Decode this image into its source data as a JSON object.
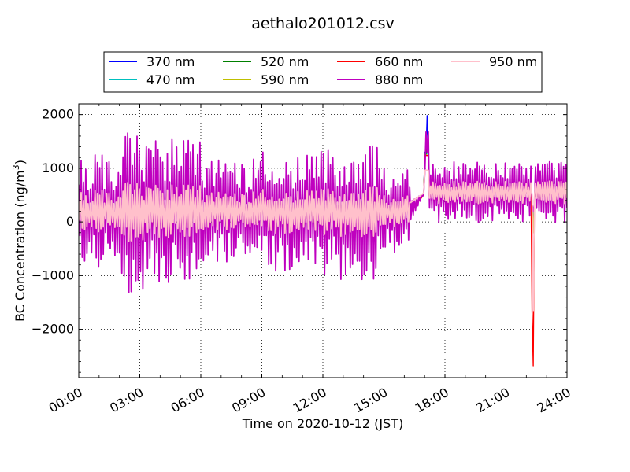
{
  "chart_data": {
    "type": "line",
    "title": "aethalo201012.csv",
    "xlabel": "Time on 2020-10-12 (JST)",
    "ylabel_main": "BC Concentration (ng/m",
    "ylabel_sup": "3",
    "ylabel_tail": ")",
    "xlim": [
      0,
      24
    ],
    "ylim": [
      -2900,
      2200
    ],
    "x_ticks": [
      0,
      3,
      6,
      9,
      12,
      15,
      18,
      21,
      24
    ],
    "x_tick_labels": [
      "00:00",
      "03:00",
      "06:00",
      "09:00",
      "12:00",
      "15:00",
      "18:00",
      "21:00",
      "24:00"
    ],
    "y_ticks": [
      -2000,
      -1000,
      0,
      1000,
      2000
    ],
    "y_tick_labels": [
      "−2000",
      "−1000",
      "0",
      "1000",
      "2000"
    ],
    "grid": true,
    "legend": "top, above plot, 4 columns",
    "series": [
      {
        "name": "370 nm",
        "color": "#0000ff"
      },
      {
        "name": "470 nm",
        "color": "#00bfbf"
      },
      {
        "name": "520 nm",
        "color": "#008000"
      },
      {
        "name": "590 nm",
        "color": "#bfbf00"
      },
      {
        "name": "660 nm",
        "color": "#ff0000"
      },
      {
        "name": "880 nm",
        "color": "#bf00bf"
      },
      {
        "name": "950 nm",
        "color": "#ffc0cb"
      }
    ],
    "notable_points": [
      {
        "series": "370 nm",
        "x": 17.1,
        "y": 1980
      },
      {
        "series": "660 nm",
        "x": 22.3,
        "y": -2680
      },
      {
        "series": "950 nm",
        "x": 22.3,
        "y": -1650
      },
      {
        "series": "880 nm",
        "x": 16.3,
        "y": -200
      }
    ]
  }
}
